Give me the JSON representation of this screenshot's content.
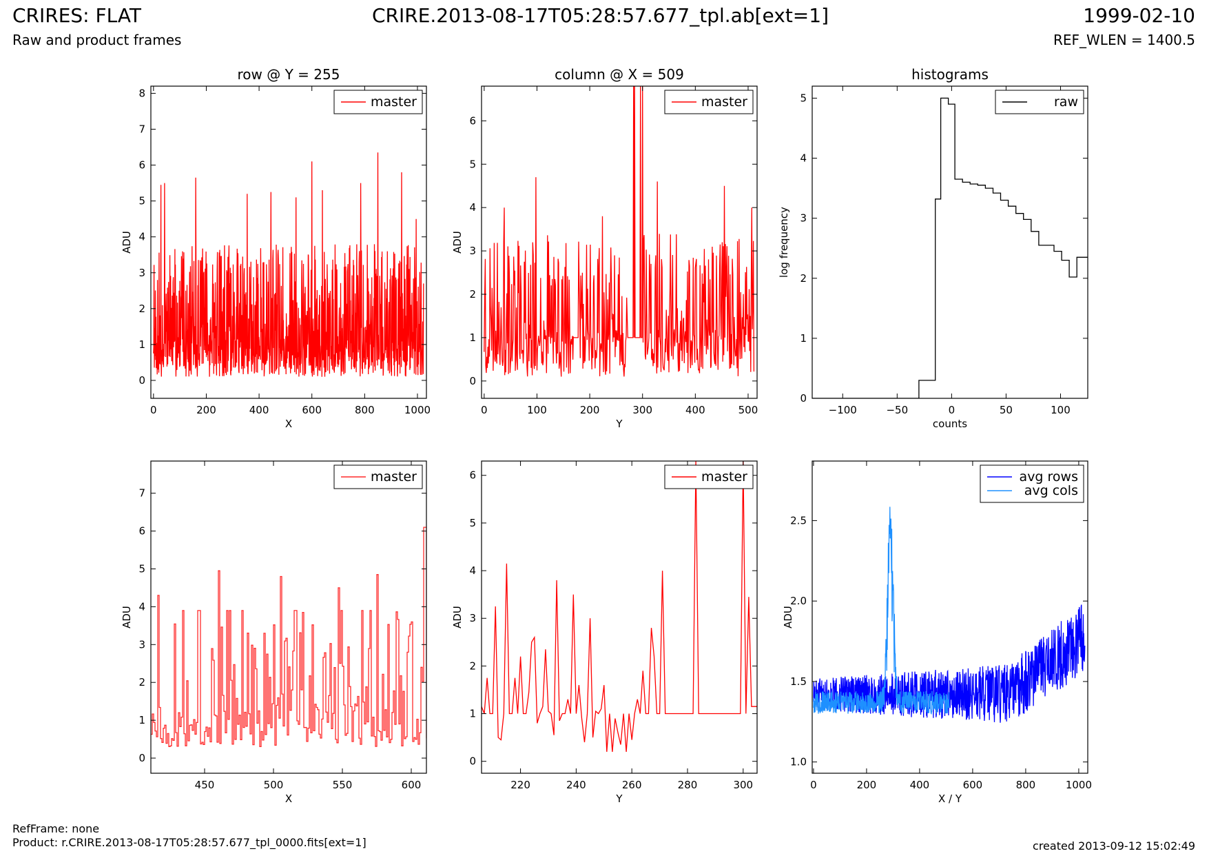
{
  "header": {
    "instrument_title": "CRIRES: FLAT",
    "file_title": "CRIRE.2013-08-17T05:28:57.677_tpl.ab[ext=1]",
    "date": "1999-02-10",
    "subtitle": "Raw and product frames",
    "ref_wlen": "REF_WLEN = 1400.5"
  },
  "footer": {
    "refframe": "RefFrame: none",
    "product": "Product: r.CRIRE.2013-08-17T05:28:57.677_tpl_0000.fits[ext=1]",
    "created": "created 2013-09-12 15:02:49"
  },
  "colors": {
    "master": "#ff0000",
    "master_zoom": "#ff2a2a",
    "raw": "#000000",
    "avg_rows": "#0000ff",
    "avg_cols": "#1e90ff"
  },
  "chart_data": [
    {
      "id": "row",
      "type": "line",
      "title": "row @ Y = 255",
      "xlabel": "X",
      "ylabel": "ADU",
      "xlim": [
        -10,
        1034
      ],
      "ylim": [
        -0.5,
        8.2
      ],
      "xticks": [
        0,
        200,
        400,
        600,
        800,
        1000
      ],
      "yticks": [
        0,
        1,
        2,
        3,
        4,
        5,
        6,
        7,
        8
      ],
      "legend": {
        "placement": "top-right",
        "entries": [
          "master"
        ]
      },
      "series": [
        {
          "name": "master",
          "color": "#ff0000",
          "x_range": [
            0,
            1023
          ],
          "generator": {
            "kind": "noise",
            "n": 1024,
            "seed": 11,
            "base": 1.0,
            "spread": 1.4,
            "min": 0.1,
            "max": 4.5
          },
          "peaks": [
            [
              28,
              5.45
            ],
            [
              42,
              5.5
            ],
            [
              160,
              5.65
            ],
            [
              355,
              5.2
            ],
            [
              445,
              5.25
            ],
            [
              540,
              5.1
            ],
            [
              600,
              6.1
            ],
            [
              640,
              5.3
            ],
            [
              785,
              5.5
            ],
            [
              850,
              6.35
            ],
            [
              940,
              5.8
            ],
            [
              995,
              4.5
            ]
          ]
        }
      ]
    },
    {
      "id": "column",
      "type": "line",
      "title": "column @ X = 509",
      "xlabel": "Y",
      "ylabel": "ADU",
      "xlim": [
        -5,
        517
      ],
      "ylim": [
        -0.4,
        6.8
      ],
      "xticks": [
        0,
        100,
        200,
        300,
        400,
        500
      ],
      "yticks": [
        0,
        1,
        2,
        3,
        4,
        5,
        6
      ],
      "legend": {
        "placement": "top-right",
        "entries": [
          "master"
        ]
      },
      "series": [
        {
          "name": "master",
          "color": "#ff0000",
          "x_range": [
            0,
            511
          ],
          "generator": {
            "kind": "noise",
            "n": 512,
            "seed": 23,
            "base": 1.0,
            "spread": 1.2,
            "min": 0.1,
            "max": 4.0
          },
          "flat_segments": [
            [
              170,
              178,
              1.0
            ],
            [
              272,
              300,
              1.0
            ]
          ],
          "peaks": [
            [
              38,
              4.0
            ],
            [
              98,
              4.7
            ],
            [
              224,
              3.8
            ],
            [
              283,
              6.8
            ],
            [
              285,
              6.8
            ],
            [
              296,
              6.8
            ],
            [
              300,
              6.8
            ],
            [
              328,
              4.6
            ],
            [
              455,
              4.5
            ],
            [
              507,
              4.0
            ]
          ]
        }
      ]
    },
    {
      "id": "histograms",
      "type": "line",
      "title": "histograms",
      "xlabel": "counts",
      "ylabel": "log frequency",
      "xlim": [
        -128,
        125
      ],
      "ylim": [
        0,
        5.2
      ],
      "xticks": [
        -100,
        -50,
        0,
        50,
        100
      ],
      "yticks": [
        0,
        1,
        2,
        3,
        4,
        5
      ],
      "legend": {
        "placement": "top-right",
        "entries": [
          "raw"
        ]
      },
      "series": [
        {
          "name": "raw",
          "color": "#000000",
          "step": true,
          "x": [
            -128,
            -30,
            -30,
            -15,
            -15,
            -10,
            -10,
            -3,
            -3,
            3,
            3,
            10,
            10,
            17,
            17,
            24,
            24,
            31,
            31,
            38,
            38,
            45,
            45,
            52,
            52,
            59,
            59,
            66,
            66,
            73,
            73,
            80,
            80,
            94,
            94,
            101,
            101,
            108,
            108,
            115,
            115,
            125
          ],
          "y": [
            0,
            0,
            0.3,
            0.3,
            3.32,
            3.32,
            5.0,
            5.0,
            4.9,
            4.9,
            3.65,
            3.65,
            3.6,
            3.6,
            3.57,
            3.57,
            3.55,
            3.55,
            3.5,
            3.5,
            3.42,
            3.42,
            3.3,
            3.3,
            3.2,
            3.2,
            3.08,
            3.08,
            2.98,
            2.98,
            2.78,
            2.78,
            2.55,
            2.55,
            2.45,
            2.45,
            2.3,
            2.3,
            2.02,
            2.02,
            2.35,
            2.35
          ]
        }
      ]
    },
    {
      "id": "row-zoom",
      "type": "line",
      "title": "",
      "xlabel": "X",
      "ylabel": "ADU",
      "xlim": [
        411,
        611
      ],
      "ylim": [
        -0.4,
        7.85
      ],
      "xticks": [
        450,
        500,
        550,
        600
      ],
      "yticks": [
        0,
        1,
        2,
        3,
        4,
        5,
        6,
        7
      ],
      "legend": {
        "placement": "top-right",
        "entries": [
          "master"
        ]
      },
      "series": [
        {
          "name": "master",
          "color": "#ff2a2a",
          "step": true,
          "x_range": [
            411,
            611
          ],
          "generator": {
            "kind": "noise",
            "n": 201,
            "seed": 37,
            "base": 1.2,
            "spread": 1.7,
            "min": 0.15,
            "max": 3.9
          },
          "peaks": [
            [
              416,
              4.3
            ],
            [
              460,
              4.95
            ],
            [
              505,
              4.8
            ],
            [
              547,
              4.5
            ],
            [
              575,
              4.85
            ],
            [
              600,
              3.6
            ],
            [
              609,
              6.1
            ],
            [
              610,
              6.1
            ]
          ]
        }
      ]
    },
    {
      "id": "column-zoom",
      "type": "line",
      "title": "",
      "xlabel": "Y",
      "ylabel": "ADU",
      "xlim": [
        206,
        305
      ],
      "ylim": [
        -0.25,
        6.3
      ],
      "xticks": [
        220,
        240,
        260,
        280,
        300
      ],
      "yticks": [
        0,
        1,
        2,
        3,
        4,
        5,
        6
      ],
      "legend": {
        "placement": "top-right",
        "entries": [
          "master"
        ]
      },
      "series": [
        {
          "name": "master",
          "color": "#ff0000",
          "step": true,
          "x": [
            206,
            207,
            208,
            209,
            210,
            211,
            212,
            213,
            214,
            215,
            216,
            217,
            218,
            219,
            220,
            221,
            222,
            223,
            224,
            225,
            226,
            227,
            228,
            229,
            230,
            231,
            232,
            233,
            234,
            235,
            236,
            237,
            238,
            239,
            240,
            241,
            242,
            243,
            244,
            245,
            246,
            247,
            248,
            249,
            250,
            251,
            252,
            253,
            254,
            255,
            256,
            257,
            258,
            259,
            260,
            261,
            262,
            263,
            264,
            265,
            266,
            267,
            268,
            269,
            270,
            271,
            272,
            273,
            274,
            275,
            276,
            277,
            278,
            279,
            280,
            281,
            282,
            283,
            284,
            285,
            286,
            287,
            288,
            289,
            290,
            291,
            292,
            293,
            294,
            295,
            296,
            297,
            298,
            299,
            300,
            301,
            302,
            303,
            304,
            305
          ],
          "y": [
            1.15,
            1.0,
            1.75,
            1.0,
            1.0,
            3.25,
            0.5,
            0.45,
            1.0,
            4.15,
            1.0,
            1.0,
            1.75,
            1.0,
            2.2,
            1.0,
            1.0,
            1.45,
            2.5,
            2.6,
            0.8,
            1.0,
            1.15,
            2.35,
            1.05,
            1.0,
            0.55,
            3.8,
            0.85,
            1.0,
            1.0,
            1.3,
            1.0,
            3.5,
            1.0,
            1.6,
            0.9,
            0.4,
            1.0,
            3.0,
            0.5,
            1.05,
            1.0,
            1.1,
            1.6,
            0.2,
            1.0,
            0.2,
            0.9,
            0.6,
            0.35,
            1.0,
            0.2,
            1.0,
            0.45,
            1.0,
            1.3,
            1.0,
            1.9,
            1.0,
            1.0,
            2.8,
            2.2,
            1.0,
            1.0,
            4.0,
            1.0,
            1.0,
            1.0,
            1.0,
            1.0,
            1.0,
            1.0,
            1.0,
            1.0,
            1.0,
            1.0,
            6.3,
            1.0,
            1.0,
            1.0,
            1.0,
            1.0,
            1.0,
            1.0,
            1.0,
            1.0,
            1.0,
            1.0,
            1.0,
            1.0,
            1.0,
            1.0,
            1.0,
            6.3,
            1.0,
            3.45,
            1.15,
            1.15,
            1.15
          ]
        }
      ]
    },
    {
      "id": "averages",
      "type": "line",
      "title": "",
      "xlabel": "X / Y",
      "ylabel": "ADU",
      "xlim": [
        -5,
        1034
      ],
      "ylim": [
        0.93,
        2.87
      ],
      "xticks": [
        0,
        200,
        400,
        600,
        800,
        1000
      ],
      "yticks": [
        1.0,
        1.5,
        2.0,
        2.5
      ],
      "legend": {
        "placement": "top-right",
        "entries": [
          "avg rows",
          "avg cols"
        ]
      },
      "series": [
        {
          "name": "avg rows",
          "color": "#0000ff",
          "x_range": [
            0,
            1023
          ],
          "generator": {
            "kind": "trend",
            "n": 1024,
            "seed": 51,
            "start": 1.42,
            "end": 1.78,
            "knee": 0.72,
            "spread": 0.16,
            "min": 1.0,
            "max": 2.12
          }
        },
        {
          "name": "avg cols",
          "color": "#1e90ff",
          "x_range": [
            0,
            511
          ],
          "generator": {
            "kind": "spike",
            "n": 512,
            "seed": 67,
            "base": 1.37,
            "spread": 0.07,
            "center": 290,
            "width": 22,
            "height": 1.3,
            "min": 1.02,
            "max": 2.87
          }
        }
      ]
    }
  ]
}
